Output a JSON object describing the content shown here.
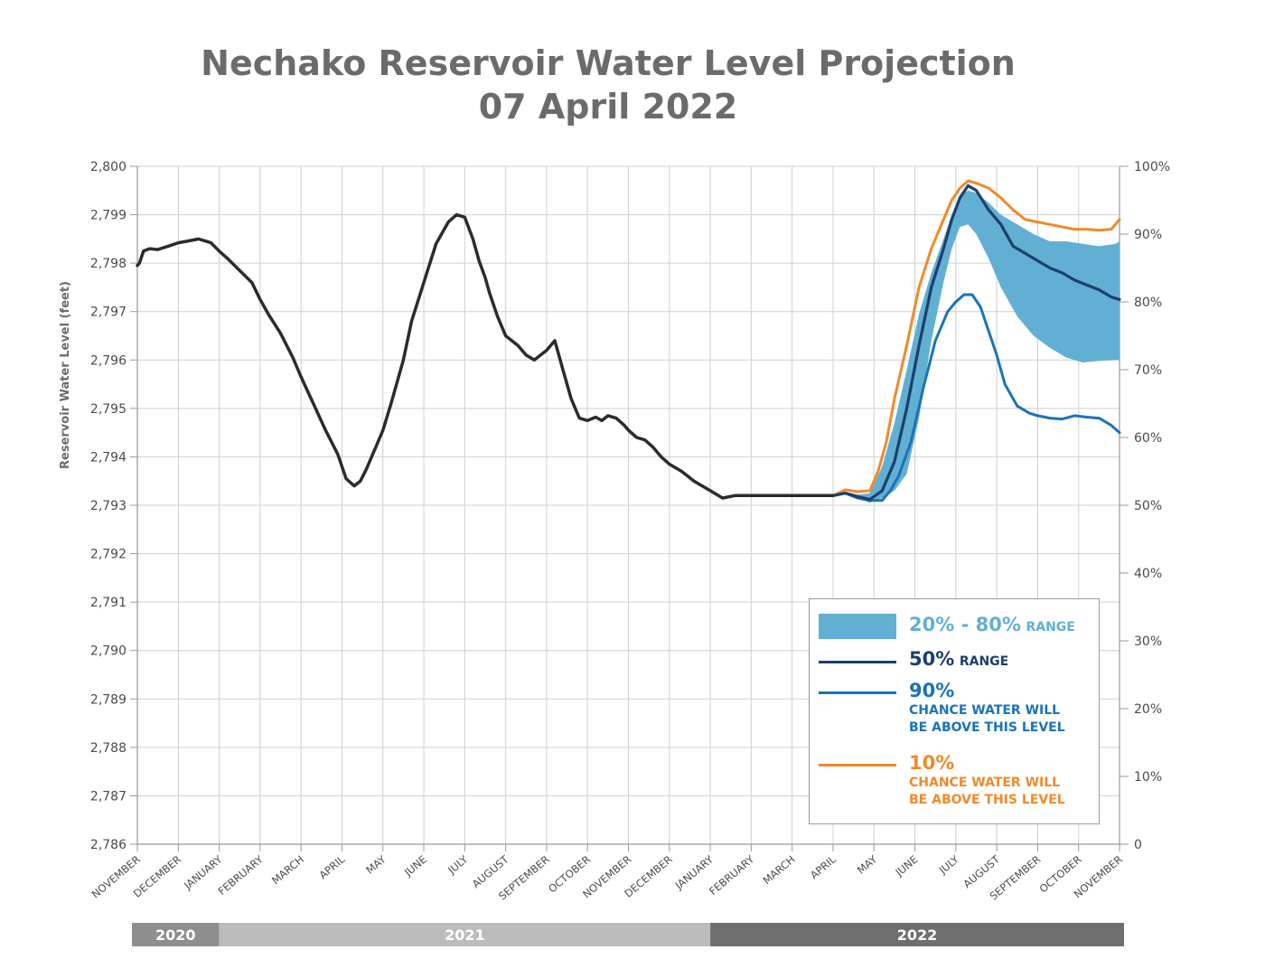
{
  "title_line1": "Nechako Reservoir Water Level Projection",
  "title_line2": "07 April 2022",
  "colors": {
    "historic": "#2b2b2b",
    "band": "#62afd4",
    "p50": "#1c3f6e",
    "p90": "#1b73b8",
    "p10": "#f08a2a",
    "year2020": "#8e8e8e",
    "year2021": "#bcbcbc",
    "year2022": "#6e6e6e"
  },
  "legend": {
    "band": {
      "big": "20% - 80%",
      "small": "RANGE"
    },
    "p50": {
      "big": "50%",
      "small": "RANGE"
    },
    "p90": {
      "big": "90%",
      "line1": "CHANCE WATER WILL",
      "line2": "BE ABOVE THIS LEVEL"
    },
    "p10": {
      "big": "10%",
      "line1": "CHANCE WATER WILL",
      "line2": "BE ABOVE THIS LEVEL"
    }
  },
  "year_labels": [
    "2020",
    "2021",
    "2022"
  ],
  "chart_data": {
    "type": "line",
    "ylabel": "Reservoir Water Level (feet)",
    "ylim": [
      2786,
      2800
    ],
    "y_ticks": [
      "2,786",
      "2,787",
      "2,788",
      "2,789",
      "2,790",
      "2,791",
      "2,792",
      "2,793",
      "2,794",
      "2,795",
      "2,796",
      "2,797",
      "2,798",
      "2,799",
      "2,800"
    ],
    "y2_ticks": [
      "0",
      "10%",
      "20%",
      "30%",
      "40%",
      "50%",
      "60%",
      "70%",
      "80%",
      "90%",
      "100%"
    ],
    "x_categories": [
      "NOVEMBER",
      "DECEMBER",
      "JANUARY",
      "FEBRUARY",
      "MARCH",
      "APRIL",
      "MAY",
      "JUNE",
      "JULY",
      "AUGUST",
      "SEPTEMBER",
      "OCTOBER",
      "NOVEMBER",
      "DECEMBER",
      "JANUARY",
      "FEBRUARY",
      "MARCH",
      "APRIL",
      "MAY",
      "JUNE",
      "JULY",
      "AUGUST",
      "SEPTEMBER",
      "OCTOBER",
      "NOVEMBER"
    ],
    "year_spans": [
      {
        "year": "2020",
        "from": 0,
        "to": 2
      },
      {
        "year": "2021",
        "from": 2,
        "to": 14
      },
      {
        "year": "2022",
        "from": 14,
        "to": 24
      }
    ],
    "grid": true,
    "series": [
      {
        "key": "historic",
        "x": [
          0,
          0.05,
          0.15,
          0.3,
          0.5,
          0.75,
          1.0,
          1.2,
          1.5,
          1.8,
          2.0,
          2.2,
          2.5,
          2.8,
          3.0,
          3.2,
          3.5,
          3.8,
          4.0,
          4.3,
          4.6,
          4.9,
          5.1,
          5.3,
          5.45,
          5.6,
          5.8,
          6.0,
          6.2,
          6.5,
          6.7,
          7.0,
          7.3,
          7.6,
          7.8,
          8.0,
          8.2,
          8.35,
          8.5,
          8.6,
          8.8,
          9.0,
          9.3,
          9.5,
          9.7,
          10.0,
          10.2,
          10.4,
          10.6,
          10.8,
          11.0,
          11.2,
          11.35,
          11.5,
          11.7,
          11.9,
          12.0,
          12.2,
          12.4,
          12.6,
          12.8,
          13.0,
          13.3,
          13.6,
          14.0,
          14.3,
          14.6,
          14.9,
          15.2,
          15.5,
          15.8,
          16.0,
          16.3,
          16.6,
          16.9,
          17.0
        ],
        "y": [
          2797.95,
          2798.0,
          2798.25,
          2798.3,
          2798.28,
          2798.35,
          2798.42,
          2798.45,
          2798.5,
          2798.42,
          2798.25,
          2798.1,
          2797.85,
          2797.6,
          2797.25,
          2796.95,
          2796.55,
          2796.05,
          2795.65,
          2795.1,
          2794.55,
          2794.05,
          2793.55,
          2793.4,
          2793.5,
          2793.75,
          2794.15,
          2794.55,
          2795.1,
          2796.0,
          2796.8,
          2797.6,
          2798.4,
          2798.85,
          2799.0,
          2798.95,
          2798.5,
          2798.05,
          2797.7,
          2797.4,
          2796.9,
          2796.5,
          2796.3,
          2796.1,
          2796.0,
          2796.2,
          2796.4,
          2795.8,
          2795.2,
          2794.8,
          2794.75,
          2794.82,
          2794.75,
          2794.85,
          2794.8,
          2794.65,
          2794.55,
          2794.4,
          2794.35,
          2794.2,
          2794.0,
          2793.85,
          2793.7,
          2793.5,
          2793.3,
          2793.15,
          2793.2,
          2793.2,
          2793.2,
          2793.2,
          2793.2,
          2793.2,
          2793.2,
          2793.2,
          2793.2,
          2793.2
        ]
      },
      {
        "key": "band_upper",
        "x": [
          17.0,
          17.3,
          17.6,
          17.9,
          18.2,
          18.5,
          18.8,
          19.1,
          19.4,
          19.7,
          19.9,
          20.1,
          20.3,
          20.5,
          20.8,
          21.1,
          21.5,
          21.9,
          22.3,
          22.7,
          23.1,
          23.5,
          23.9,
          24.0
        ],
        "y": [
          2793.2,
          2793.28,
          2793.22,
          2793.25,
          2793.8,
          2794.7,
          2795.8,
          2796.95,
          2797.8,
          2798.5,
          2799.0,
          2799.4,
          2799.5,
          2799.45,
          2799.25,
          2799.0,
          2798.8,
          2798.6,
          2798.45,
          2798.45,
          2798.4,
          2798.35,
          2798.4,
          2798.45
        ]
      },
      {
        "key": "band_lower",
        "x": [
          17.0,
          17.3,
          17.6,
          17.9,
          18.2,
          18.5,
          18.8,
          19.1,
          19.4,
          19.7,
          19.9,
          20.1,
          20.3,
          20.5,
          20.8,
          21.1,
          21.5,
          21.9,
          22.3,
          22.7,
          23.1,
          23.5,
          23.9,
          24.0
        ],
        "y": [
          2793.2,
          2793.22,
          2793.15,
          2793.05,
          2793.15,
          2793.3,
          2793.65,
          2794.8,
          2796.4,
          2797.6,
          2798.3,
          2798.75,
          2798.8,
          2798.6,
          2798.1,
          2797.5,
          2796.9,
          2796.5,
          2796.25,
          2796.05,
          2795.95,
          2795.98,
          2796.0,
          2796.0
        ]
      },
      {
        "key": "p50",
        "x": [
          17.0,
          17.3,
          17.6,
          17.9,
          18.2,
          18.5,
          18.8,
          19.1,
          19.4,
          19.7,
          19.9,
          20.1,
          20.3,
          20.5,
          20.8,
          21.1,
          21.4,
          21.7,
          22.0,
          22.3,
          22.6,
          22.9,
          23.2,
          23.5,
          23.8,
          24.0
        ],
        "y": [
          2793.2,
          2793.25,
          2793.18,
          2793.12,
          2793.3,
          2793.9,
          2795.0,
          2796.3,
          2797.5,
          2798.3,
          2798.9,
          2799.35,
          2799.6,
          2799.5,
          2799.1,
          2798.8,
          2798.35,
          2798.2,
          2798.05,
          2797.9,
          2797.8,
          2797.65,
          2797.55,
          2797.45,
          2797.3,
          2797.25
        ]
      },
      {
        "key": "p90",
        "x": [
          17.0,
          17.3,
          17.6,
          17.9,
          18.2,
          18.4,
          18.6,
          18.9,
          19.2,
          19.5,
          19.8,
          20.0,
          20.2,
          20.4,
          20.6,
          20.8,
          21.0,
          21.2,
          21.5,
          21.8,
          22.0,
          22.3,
          22.6,
          22.9,
          23.2,
          23.5,
          23.8,
          24.0
        ],
        "y": [
          2793.2,
          2793.25,
          2793.15,
          2793.1,
          2793.1,
          2793.3,
          2793.6,
          2794.3,
          2795.4,
          2796.4,
          2797.0,
          2797.2,
          2797.35,
          2797.35,
          2797.1,
          2796.6,
          2796.1,
          2795.5,
          2795.05,
          2794.9,
          2794.85,
          2794.8,
          2794.78,
          2794.85,
          2794.82,
          2794.8,
          2794.65,
          2794.5
        ]
      },
      {
        "key": "p10",
        "x": [
          17.0,
          17.3,
          17.6,
          17.9,
          18.1,
          18.3,
          18.5,
          18.8,
          19.1,
          19.4,
          19.7,
          19.9,
          20.1,
          20.3,
          20.5,
          20.8,
          21.1,
          21.4,
          21.7,
          22.0,
          22.3,
          22.6,
          22.9,
          23.2,
          23.5,
          23.8,
          24.0
        ],
        "y": [
          2793.2,
          2793.32,
          2793.28,
          2793.3,
          2793.7,
          2794.3,
          2795.2,
          2796.3,
          2797.5,
          2798.3,
          2798.9,
          2799.3,
          2799.55,
          2799.7,
          2799.65,
          2799.55,
          2799.35,
          2799.1,
          2798.9,
          2798.85,
          2798.8,
          2798.75,
          2798.7,
          2798.7,
          2798.68,
          2798.7,
          2798.9
        ]
      }
    ]
  }
}
